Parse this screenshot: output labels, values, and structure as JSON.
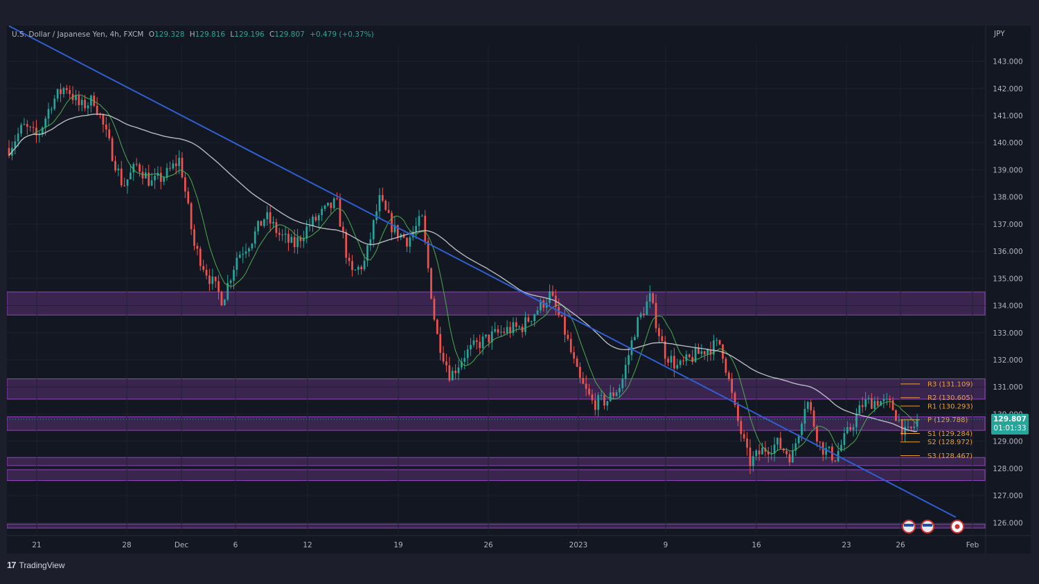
{
  "chart_data": {
    "type": "candlestick",
    "title": "U.S. Dollar / Japanese Yen, 4h, FXCM",
    "ohlc": {
      "O_label": "O",
      "O_value": "129.328",
      "H_label": "H",
      "H_value": "129.816",
      "L_label": "L",
      "L_value": "129.196",
      "C_label": "C",
      "C_value": "129.807",
      "change": "+0.479 (+0.37%)"
    },
    "currency": "JPY",
    "ylim": [
      125.6,
      143.6
    ],
    "y_ticks": [
      "143.000",
      "142.000",
      "141.000",
      "140.000",
      "139.000",
      "138.000",
      "137.000",
      "136.000",
      "135.000",
      "134.000",
      "133.000",
      "132.000",
      "131.000",
      "130.000",
      "129.000",
      "128.000",
      "127.000",
      "126.000"
    ],
    "x_ticks": [
      "21",
      "28",
      "Dec",
      "6",
      "12",
      "19",
      "26",
      "2023",
      "9",
      "16",
      "23",
      "26",
      "Feb"
    ],
    "price_now": {
      "price": "129.807",
      "countdown": "01:01:33",
      "value": 129.807
    },
    "anchors": [
      [
        0,
        139.8
      ],
      [
        2,
        140.6
      ],
      [
        4,
        140.2
      ],
      [
        6,
        141.5
      ],
      [
        8,
        142.1
      ],
      [
        10,
        141.3
      ],
      [
        12,
        141.6
      ],
      [
        14,
        140.0
      ],
      [
        16,
        138.4
      ],
      [
        18,
        139.2
      ],
      [
        20,
        138.5
      ],
      [
        22,
        138.8
      ],
      [
        24,
        139.4
      ],
      [
        26,
        136.2
      ],
      [
        28,
        135.1
      ],
      [
        30,
        134.2
      ],
      [
        32,
        135.8
      ],
      [
        34,
        136.4
      ],
      [
        36,
        137.3
      ],
      [
        38,
        136.6
      ],
      [
        40,
        136.2
      ],
      [
        42,
        136.9
      ],
      [
        44,
        137.4
      ],
      [
        46,
        137.8
      ],
      [
        48,
        135.1
      ],
      [
        50,
        135.6
      ],
      [
        52,
        137.9
      ],
      [
        54,
        136.8
      ],
      [
        56,
        136.4
      ],
      [
        58,
        137.2
      ],
      [
        60,
        133.0
      ],
      [
        62,
        131.4
      ],
      [
        64,
        132.2
      ],
      [
        66,
        132.6
      ],
      [
        68,
        132.9
      ],
      [
        70,
        133.1
      ],
      [
        72,
        133.2
      ],
      [
        74,
        133.8
      ],
      [
        76,
        134.4
      ],
      [
        78,
        133.1
      ],
      [
        80,
        131.3
      ],
      [
        82,
        130.4
      ],
      [
        84,
        130.5
      ],
      [
        86,
        131.1
      ],
      [
        88,
        133.2
      ],
      [
        90,
        134.3
      ],
      [
        92,
        132.3
      ],
      [
        94,
        131.7
      ],
      [
        96,
        132.1
      ],
      [
        98,
        132.4
      ],
      [
        100,
        132.6
      ],
      [
        102,
        130.1
      ],
      [
        104,
        128.2
      ],
      [
        106,
        128.7
      ],
      [
        108,
        128.9
      ],
      [
        110,
        128.4
      ],
      [
        112,
        130.6
      ],
      [
        114,
        128.8
      ],
      [
        116,
        128.4
      ],
      [
        118,
        129.4
      ],
      [
        120,
        130.4
      ],
      [
        122,
        130.5
      ],
      [
        124,
        130.3
      ],
      [
        126,
        129.2
      ],
      [
        128,
        129.807
      ]
    ],
    "moving_averages": [
      {
        "name": "",
        "color": "#4caf50",
        "period": 9
      },
      {
        "name": "",
        "color": "#c9cbd1",
        "period": 60
      }
    ],
    "trendline": {
      "from": [
        0,
        144.3
      ],
      "to": [
        133,
        126.2
      ],
      "color": "#2f5fd0"
    },
    "zones": [
      {
        "top": 134.5,
        "bottom": 133.65
      },
      {
        "top": 131.3,
        "bottom": 130.55
      },
      {
        "top": 129.9,
        "bottom": 129.4
      },
      {
        "top": 128.4,
        "bottom": 128.1
      },
      {
        "top": 127.95,
        "bottom": 127.55
      },
      {
        "top": 125.95,
        "bottom": 125.8
      }
    ],
    "pivots": [
      {
        "label": "R3 (131.109)",
        "value": 131.109
      },
      {
        "label": "R2 (130.605)",
        "value": 130.605
      },
      {
        "label": "R1 (130.293)",
        "value": 130.293
      },
      {
        "label": "P (129.788)",
        "value": 129.788
      },
      {
        "label": "S1 (129.284)",
        "value": 129.284
      },
      {
        "label": "S2 (128.972)",
        "value": 128.972
      },
      {
        "label": "S3 (128.467)",
        "value": 128.467
      }
    ],
    "colors": {
      "up": "#26a69a",
      "down": "#ef5350",
      "pivot": "#f0a030",
      "zone": "#8e44ad",
      "price_tag": "#26a69a"
    }
  },
  "brand": {
    "name": "TradingView",
    "logo": "17"
  }
}
